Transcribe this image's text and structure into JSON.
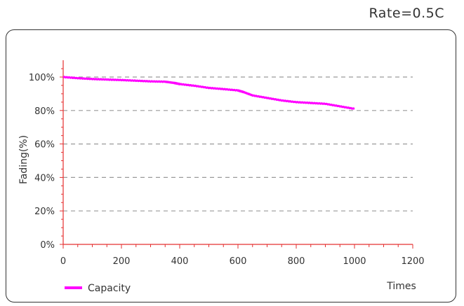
{
  "rate_label": "Rate=0.5C",
  "chart_data": {
    "type": "line",
    "title": "Rate=0.5C",
    "xlabel": "Times",
    "ylabel": "Fading(%)",
    "xlim": [
      0,
      1200
    ],
    "ylim": [
      0,
      100
    ],
    "x_ticks": [
      0,
      200,
      400,
      600,
      800,
      1000,
      1200
    ],
    "y_ticks": [
      0,
      20,
      40,
      60,
      80,
      100
    ],
    "x_tick_labels": [
      "0",
      "200",
      "400",
      "600",
      "800",
      "1000",
      "1200"
    ],
    "y_tick_labels": [
      "0%",
      "20%",
      "40%",
      "60%",
      "80%",
      "100%"
    ],
    "grid": "horizontal dashed",
    "legend_position": "bottom-left",
    "series": [
      {
        "name": "Capacity",
        "color": "#ff00ff",
        "x": [
          0,
          50,
          100,
          150,
          200,
          250,
          300,
          350,
          380,
          400,
          450,
          500,
          550,
          600,
          620,
          650,
          700,
          750,
          800,
          850,
          900,
          950,
          1000
        ],
        "y": [
          100,
          99.3,
          98.8,
          98.5,
          98.2,
          97.8,
          97.4,
          97.2,
          96.5,
          95.8,
          94.8,
          93.5,
          92.8,
          92,
          91,
          89,
          87.5,
          86,
          85,
          84.5,
          84,
          82.5,
          81
        ]
      }
    ]
  },
  "colors": {
    "axis": "#e53030",
    "grid": "#9a9a9a",
    "series": "#ff00ff",
    "frame": "#333333"
  }
}
